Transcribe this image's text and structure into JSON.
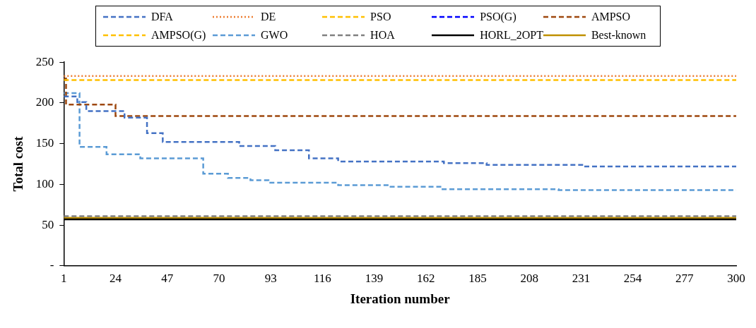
{
  "chart_data": {
    "type": "step",
    "xlabel": "Iteration number",
    "ylabel": "Total cost",
    "xlim": [
      1,
      300
    ],
    "xticks": [
      1,
      24,
      47,
      70,
      93,
      116,
      139,
      162,
      185,
      208,
      231,
      254,
      277,
      300
    ],
    "ylim": [
      0,
      250
    ],
    "yticks": [
      {
        "value": 0,
        "label": "-"
      },
      50,
      100,
      150,
      200,
      250
    ],
    "grid": false,
    "legend": "top",
    "marker": "none",
    "series": [
      {
        "name": "DFA",
        "color": "#4472c4",
        "line_style": "dashed",
        "x": [
          1,
          7,
          11,
          28,
          38,
          45,
          79,
          95,
          110,
          123,
          170,
          189,
          232,
          300
        ],
        "values": [
          208,
          201,
          190,
          182,
          163,
          152,
          147,
          142,
          132,
          128,
          126,
          124,
          122,
          122
        ]
      },
      {
        "name": "DE",
        "color": "#ed7d31",
        "line_style": "dotted",
        "x": [
          1,
          300
        ],
        "values": [
          233,
          233
        ]
      },
      {
        "name": "PSO",
        "color": "#ffc000",
        "line_style": "dashed",
        "x": [
          1,
          300
        ],
        "values": [
          228,
          228
        ]
      },
      {
        "name": "PSO(G)",
        "color": "#0000ff",
        "line_style": "dashed"
      },
      {
        "name": "AMPSO",
        "color": "#9e480e",
        "line_style": "dashed",
        "x": [
          1,
          2,
          24,
          300
        ],
        "values": [
          230,
          198,
          184,
          184
        ]
      },
      {
        "name": "AMPSO(G)",
        "color": "#ffc000",
        "line_style": "dashed"
      },
      {
        "name": "GWO",
        "color": "#5b9bd5",
        "line_style": "dashed",
        "x": [
          1,
          8,
          20,
          35,
          63,
          74,
          84,
          92,
          123,
          145,
          169,
          221,
          300
        ],
        "values": [
          212,
          146,
          137,
          132,
          113,
          108,
          105,
          102,
          99,
          97,
          94,
          93,
          93
        ]
      },
      {
        "name": "HOA",
        "color": "#808080",
        "line_style": "dashed",
        "x": [
          1,
          300
        ],
        "values": [
          61,
          61
        ]
      },
      {
        "name": "HORL_2OPT",
        "color": "#000000",
        "line_style": "solid",
        "x": [
          1,
          300
        ],
        "values": [
          57,
          57
        ]
      },
      {
        "name": "Best-known",
        "color": "#bf9000",
        "line_style": "solid",
        "x": [
          1,
          300
        ],
        "values": [
          59,
          59
        ]
      }
    ]
  }
}
